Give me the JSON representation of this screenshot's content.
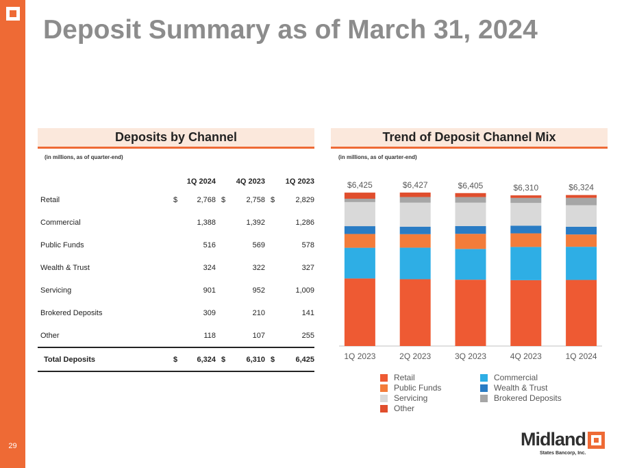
{
  "page": {
    "title": "Deposit Summary as of March 31, 2024",
    "page_number": "29"
  },
  "left_panel": {
    "heading": "Deposits by Channel",
    "note": "(in millions, as of quarter-end)"
  },
  "right_panel": {
    "heading": "Trend of Deposit Channel Mix",
    "note": "(in millions, as of quarter-end)"
  },
  "table": {
    "columns": [
      "1Q 2024",
      "4Q 2023",
      "1Q 2023"
    ],
    "currency_symbol": "$",
    "rows": [
      {
        "label": "Retail",
        "values": [
          "2,768",
          "2,758",
          "2,829"
        ]
      },
      {
        "label": "Commercial",
        "values": [
          "1,388",
          "1,392",
          "1,286"
        ]
      },
      {
        "label": "Public Funds",
        "values": [
          "516",
          "569",
          "578"
        ]
      },
      {
        "label": "Wealth & Trust",
        "values": [
          "324",
          "322",
          "327"
        ]
      },
      {
        "label": "Servicing",
        "values": [
          "901",
          "952",
          "1,009"
        ]
      },
      {
        "label": "Brokered Deposits",
        "values": [
          "309",
          "210",
          "141"
        ]
      },
      {
        "label": "Other",
        "values": [
          "118",
          "107",
          "255"
        ]
      }
    ],
    "total": {
      "label": "Total Deposits",
      "values": [
        "6,324",
        "6,310",
        "6,425"
      ]
    }
  },
  "chart_data": {
    "type": "bar",
    "stacked": true,
    "title": "Trend of Deposit Channel Mix",
    "subtitle": "(in millions, as of quarter-end)",
    "categories": [
      "1Q 2023",
      "2Q 2023",
      "3Q 2023",
      "4Q 2023",
      "1Q 2024"
    ],
    "totals_labels": [
      "$6,425",
      "$6,427",
      "$6,405",
      "$6,310",
      "$6,324"
    ],
    "series": [
      {
        "name": "Retail",
        "color": "#ee5a33",
        "values": [
          2829,
          2799,
          2778,
          2758,
          2768
        ]
      },
      {
        "name": "Commercial",
        "color": "#2eaee5",
        "values": [
          1286,
          1321,
          1287,
          1392,
          1388
        ]
      },
      {
        "name": "Public Funds",
        "color": "#f37c3a",
        "values": [
          578,
          565,
          634,
          569,
          516
        ]
      },
      {
        "name": "Wealth & Trust",
        "color": "#2a7cc4",
        "values": [
          327,
          314,
          326,
          322,
          324
        ]
      },
      {
        "name": "Servicing",
        "color": "#d9d9d9",
        "values": [
          1009,
          1005,
          979,
          952,
          901
        ]
      },
      {
        "name": "Brokered Deposits",
        "color": "#a6a6a6",
        "values": [
          141,
          237,
          236,
          210,
          309
        ]
      },
      {
        "name": "Other",
        "color": "#e04e2d",
        "values": [
          255,
          186,
          165,
          107,
          118
        ]
      }
    ],
    "ylim": [
      0,
      6600
    ],
    "grid": false,
    "legend": "bottom"
  }
}
